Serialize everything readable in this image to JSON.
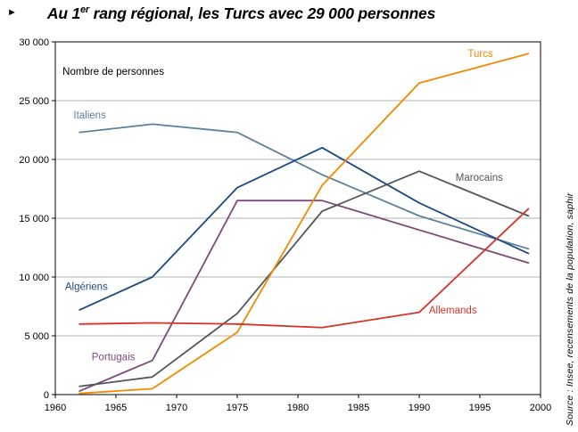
{
  "title": {
    "arrow": "►",
    "prefix": "Au 1",
    "superscript": "er",
    "suffix": " rang régional, les Turcs avec 29 000 personnes"
  },
  "source": "Source : Insee, recensements de la population, saphir",
  "chart_data": {
    "type": "line",
    "title": "Au 1er rang régional, les Turcs avec 29 000 personnes",
    "inner_label": {
      "text": "Nombre de personnes",
      "x": 1960.6,
      "y": 27200
    },
    "x": [
      1962,
      1968,
      1975,
      1982,
      1990,
      1999
    ],
    "xlim": [
      1960,
      2000
    ],
    "ylim": [
      0,
      30000
    ],
    "x_ticks": [
      1960,
      1965,
      1970,
      1975,
      1980,
      1985,
      1990,
      1995,
      2000
    ],
    "y_ticks": [
      0,
      5000,
      10000,
      15000,
      20000,
      25000,
      30000
    ],
    "y_tick_labels": [
      "0",
      "5 000",
      "10 000",
      "15 000",
      "20 000",
      "25 000",
      "30 000"
    ],
    "grid": "horizontal",
    "legend": "inline-labels",
    "series": [
      {
        "name": "Italiens",
        "slug": "italiens",
        "color": "#5d7f9e",
        "values": [
          22300,
          23000,
          22300,
          18700,
          15200,
          12400
        ],
        "label": {
          "x": 1961.5,
          "y": 23500
        }
      },
      {
        "name": "Algériens",
        "slug": "algeriens",
        "color": "#1c4a80",
        "values": [
          7200,
          10000,
          17600,
          21000,
          16300,
          12000
        ],
        "label": {
          "x": 1960.8,
          "y": 8900
        }
      },
      {
        "name": "Portugais",
        "slug": "portugais",
        "color": "#7d4a78",
        "values": [
          300,
          2900,
          16500,
          16500,
          14000,
          11200
        ],
        "label": {
          "x": 1963.0,
          "y": 2900
        }
      },
      {
        "name": "Marocains",
        "slug": "marocains",
        "color": "#50565c",
        "values": [
          700,
          1500,
          6900,
          15600,
          19000,
          15200
        ],
        "label": {
          "x": 1993.0,
          "y": 18200
        }
      },
      {
        "name": "Turcs",
        "slug": "turcs",
        "color": "#f08a00",
        "values": [
          100,
          500,
          5300,
          17800,
          26500,
          29000
        ],
        "label": {
          "x": 1994.0,
          "y": 28700
        }
      },
      {
        "name": "Allemands",
        "slug": "allemands",
        "color": "#d63227",
        "values": [
          6000,
          6100,
          6000,
          5700,
          7000,
          15800
        ],
        "label": {
          "x": 1990.8,
          "y": 6900
        }
      }
    ]
  }
}
